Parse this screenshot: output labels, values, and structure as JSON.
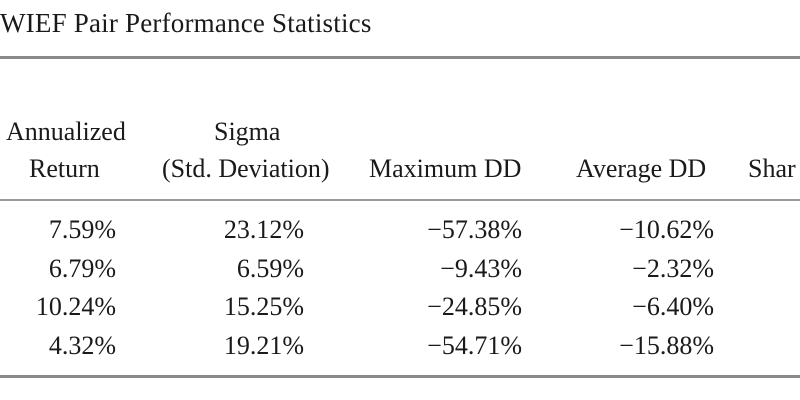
{
  "table": {
    "caption": "WIEF Pair Performance Statistics",
    "headers": {
      "annualized_line1": "Annualized",
      "annualized_line2": "Return",
      "sigma_line1": "Sigma",
      "sigma_line2": "(Std. Deviation)",
      "max_dd": "Maximum DD",
      "avg_dd": "Average DD",
      "sharpe_partial": "Shar"
    },
    "rows": [
      {
        "annualized": "7.59%",
        "sigma": "23.12%",
        "max_dd": "−57.38%",
        "avg_dd": "−10.62%"
      },
      {
        "annualized": "6.79%",
        "sigma": "6.59%",
        "max_dd": "−9.43%",
        "avg_dd": "−2.32%"
      },
      {
        "annualized": "10.24%",
        "sigma": "15.25%",
        "max_dd": "−24.85%",
        "avg_dd": "−6.40%"
      },
      {
        "annualized": "4.32%",
        "sigma": "19.21%",
        "max_dd": "−54.71%",
        "avg_dd": "−15.88%"
      }
    ]
  }
}
